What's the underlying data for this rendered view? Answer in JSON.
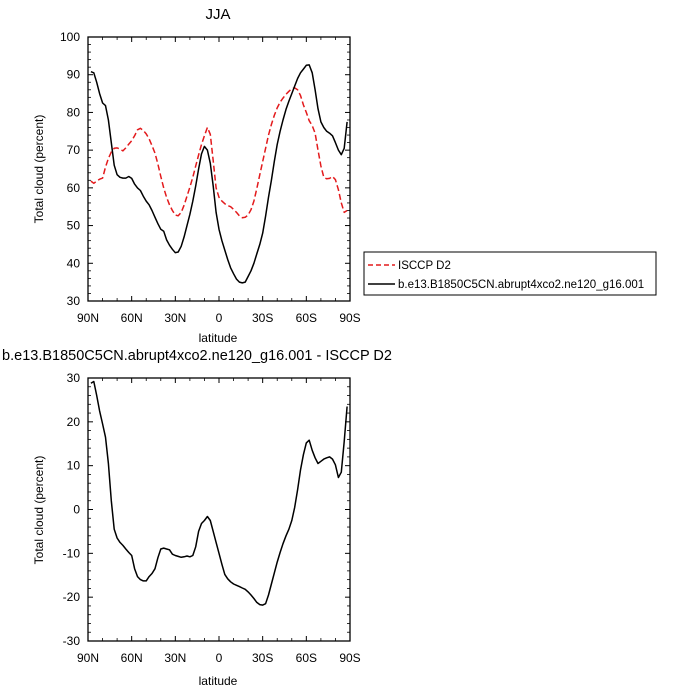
{
  "chart_data": [
    {
      "type": "line",
      "title": "JJA",
      "xlabel": "latitude",
      "ylabel": "Total cloud (percent)",
      "xlim": [
        90,
        -90
      ],
      "ylim": [
        30,
        100
      ],
      "x_ticks": [
        {
          "value": 90,
          "label": "90N"
        },
        {
          "value": 60,
          "label": "60N"
        },
        {
          "value": 30,
          "label": "30N"
        },
        {
          "value": 0,
          "label": "0"
        },
        {
          "value": -30,
          "label": "30S"
        },
        {
          "value": -60,
          "label": "60S"
        },
        {
          "value": -90,
          "label": "90S"
        }
      ],
      "y_ticks": [
        30,
        40,
        50,
        60,
        70,
        80,
        90,
        100
      ],
      "legend_position": "right",
      "series": [
        {
          "name": "ISCCP D2",
          "color": "#e31a1c",
          "dash": "dashed",
          "x": [
            88,
            86,
            84,
            82,
            80,
            78,
            76,
            74,
            72,
            70,
            68,
            66,
            64,
            62,
            60,
            58,
            56,
            54,
            52,
            50,
            48,
            46,
            44,
            42,
            40,
            38,
            36,
            34,
            32,
            30,
            28,
            26,
            24,
            22,
            20,
            18,
            16,
            14,
            12,
            10,
            8,
            6,
            4,
            2,
            0,
            -2,
            -4,
            -6,
            -8,
            -10,
            -12,
            -14,
            -16,
            -18,
            -20,
            -22,
            -24,
            -26,
            -28,
            -30,
            -32,
            -34,
            -36,
            -38,
            -40,
            -42,
            -44,
            -46,
            -48,
            -50,
            -52,
            -54,
            -56,
            -58,
            -60,
            -62,
            -64,
            -66,
            -68,
            -70,
            -72,
            -74,
            -76,
            -78,
            -80,
            -82,
            -84,
            -86,
            -88
          ],
          "values": [
            61.8,
            61.2,
            61.8,
            62.3,
            62.6,
            65.5,
            67.8,
            69.5,
            70.5,
            70.6,
            70.3,
            69.8,
            70.6,
            71.6,
            72.5,
            73.8,
            75.4,
            75.8,
            75.2,
            74.3,
            73.0,
            71.2,
            69.2,
            66.3,
            63.0,
            60.0,
            57.5,
            55.5,
            54.0,
            52.8,
            52.6,
            53.5,
            55.4,
            57.8,
            60.2,
            62.8,
            65.8,
            68.7,
            71.5,
            73.8,
            76.0,
            74.2,
            67.2,
            60.0,
            57.5,
            56.5,
            55.8,
            55.3,
            55.0,
            54.3,
            53.5,
            52.6,
            52.1,
            52.2,
            52.8,
            54.2,
            56.5,
            59.8,
            63.5,
            67.0,
            70.5,
            74.0,
            76.8,
            79.2,
            81.2,
            82.7,
            83.8,
            84.8,
            85.6,
            86.3,
            86.5,
            86.0,
            84.5,
            82.0,
            80.0,
            77.8,
            76.5,
            74.5,
            70.0,
            65.8,
            62.8,
            62.4,
            62.5,
            63.0,
            62.2,
            59.5,
            56.0,
            53.5,
            54.0
          ]
        },
        {
          "name": "b.e13.B1850C5CN.abrupt4xco2.ne120_g16.001",
          "color": "#000000",
          "dash": "solid",
          "x": [
            88,
            86,
            84,
            82,
            80,
            78,
            76,
            74,
            72,
            70,
            68,
            66,
            64,
            62,
            60,
            58,
            56,
            54,
            52,
            50,
            48,
            46,
            44,
            42,
            40,
            38,
            36,
            34,
            32,
            30,
            28,
            26,
            24,
            22,
            20,
            18,
            16,
            14,
            12,
            10,
            8,
            6,
            4,
            2,
            0,
            -2,
            -4,
            -6,
            -8,
            -10,
            -12,
            -14,
            -16,
            -18,
            -20,
            -22,
            -24,
            -26,
            -28,
            -30,
            -32,
            -34,
            -36,
            -38,
            -40,
            -42,
            -44,
            -46,
            -48,
            -50,
            -52,
            -54,
            -56,
            -58,
            -60,
            -62,
            -64,
            -66,
            -68,
            -70,
            -72,
            -74,
            -76,
            -78,
            -80,
            -82,
            -84,
            -86,
            -88
          ],
          "values": [
            90.8,
            90.5,
            88.0,
            85.0,
            82.5,
            81.8,
            78.0,
            72.0,
            66.0,
            63.5,
            62.8,
            62.6,
            62.6,
            63.0,
            62.5,
            61.0,
            60.0,
            59.3,
            57.8,
            56.5,
            55.5,
            54.0,
            52.2,
            50.5,
            49.0,
            48.5,
            46.2,
            44.8,
            43.7,
            42.8,
            43.0,
            44.5,
            47.0,
            50.0,
            53.0,
            56.5,
            60.5,
            65.0,
            69.0,
            71.0,
            70.0,
            66.5,
            60.5,
            53.5,
            49.0,
            46.0,
            43.5,
            41.0,
            38.8,
            37.2,
            35.8,
            35.0,
            34.8,
            35.0,
            36.5,
            38.0,
            40.0,
            42.5,
            45.0,
            48.0,
            52.5,
            57.5,
            62.0,
            67.0,
            71.5,
            75.0,
            78.0,
            80.8,
            83.0,
            85.0,
            87.0,
            89.0,
            90.5,
            91.5,
            92.5,
            92.6,
            90.5,
            86.0,
            81.0,
            77.5,
            76.0,
            75.0,
            74.5,
            73.8,
            72.0,
            70.0,
            68.8,
            70.5,
            77.5
          ]
        }
      ]
    },
    {
      "type": "line",
      "title": "b.e13.B1850C5CN.abrupt4xco2.ne120_g16.001 - ISCCP D2",
      "xlabel": "latitude",
      "ylabel": "Total cloud (percent)",
      "xlim": [
        90,
        -90
      ],
      "ylim": [
        -30,
        30
      ],
      "x_ticks": [
        {
          "value": 90,
          "label": "90N"
        },
        {
          "value": 60,
          "label": "60N"
        },
        {
          "value": 30,
          "label": "30N"
        },
        {
          "value": 0,
          "label": "0"
        },
        {
          "value": -30,
          "label": "30S"
        },
        {
          "value": -60,
          "label": "60S"
        },
        {
          "value": -90,
          "label": "90S"
        }
      ],
      "y_ticks": [
        -30,
        -20,
        -10,
        0,
        10,
        20,
        30
      ],
      "series": [
        {
          "name": "",
          "color": "#000000",
          "dash": "solid",
          "x": [
            88,
            86,
            84,
            82,
            80,
            78,
            76,
            74,
            72,
            70,
            68,
            66,
            64,
            62,
            60,
            58,
            56,
            54,
            52,
            50,
            48,
            46,
            44,
            42,
            40,
            38,
            36,
            34,
            32,
            30,
            28,
            26,
            24,
            22,
            20,
            18,
            16,
            14,
            12,
            10,
            8,
            6,
            4,
            2,
            0,
            -2,
            -4,
            -6,
            -8,
            -10,
            -12,
            -14,
            -16,
            -18,
            -20,
            -22,
            -24,
            -26,
            -28,
            -30,
            -32,
            -34,
            -36,
            -38,
            -40,
            -42,
            -44,
            -46,
            -48,
            -50,
            -52,
            -54,
            -56,
            -58,
            -60,
            -62,
            -64,
            -66,
            -68,
            -70,
            -72,
            -74,
            -76,
            -78,
            -80,
            -82,
            -84,
            -86,
            -88
          ],
          "values": [
            28.8,
            29.2,
            26.0,
            22.5,
            19.5,
            16.5,
            10.5,
            2.0,
            -4.5,
            -6.5,
            -7.5,
            -8.2,
            -9.0,
            -9.8,
            -10.5,
            -13.5,
            -15.3,
            -16.0,
            -16.3,
            -16.3,
            -15.3,
            -14.6,
            -13.5,
            -11.0,
            -9.0,
            -8.8,
            -9.0,
            -9.2,
            -10.2,
            -10.5,
            -10.7,
            -10.9,
            -10.8,
            -10.6,
            -10.8,
            -10.5,
            -8.5,
            -5.0,
            -3.2,
            -2.5,
            -1.6,
            -2.5,
            -5.0,
            -7.5,
            -10.0,
            -12.5,
            -14.8,
            -15.8,
            -16.5,
            -17.0,
            -17.3,
            -17.6,
            -17.9,
            -18.2,
            -18.8,
            -19.5,
            -20.3,
            -21.2,
            -21.7,
            -21.8,
            -21.5,
            -19.5,
            -17.0,
            -14.5,
            -12.0,
            -9.8,
            -7.8,
            -6.0,
            -4.5,
            -2.5,
            0.5,
            4.5,
            9.0,
            12.5,
            15.2,
            15.8,
            13.5,
            11.8,
            10.5,
            11.0,
            11.5,
            11.8,
            12.0,
            11.5,
            10.2,
            7.3,
            8.5,
            15.5,
            23.5
          ]
        }
      ]
    }
  ]
}
